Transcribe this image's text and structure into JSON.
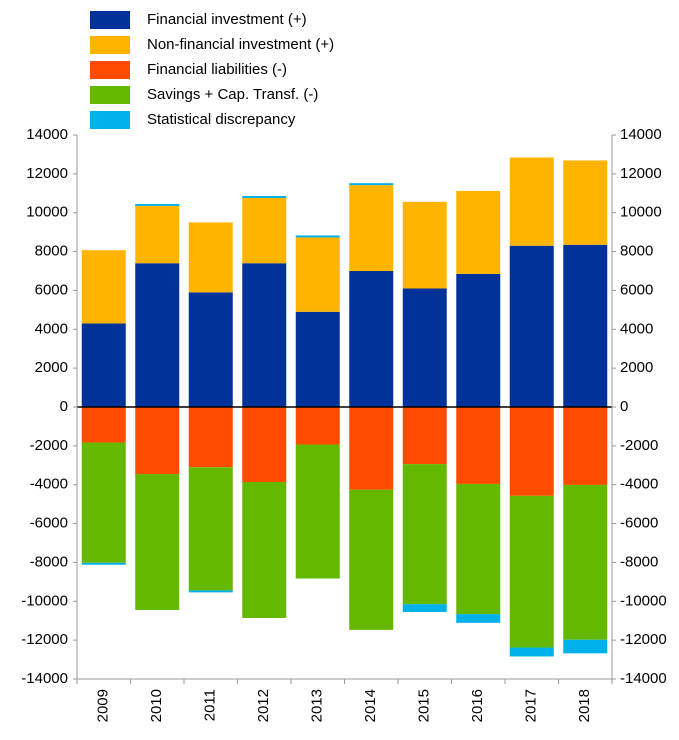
{
  "chart_data": {
    "type": "bar",
    "stacked": true,
    "categories": [
      "2009",
      "2010",
      "2011",
      "2012",
      "2013",
      "2014",
      "2015",
      "2016",
      "2017",
      "2018"
    ],
    "series": [
      {
        "name": "Financial investment (+)",
        "color": "#003299",
        "values": [
          4300,
          7400,
          5900,
          7400,
          4900,
          7000,
          6100,
          6850,
          8300,
          8350
        ]
      },
      {
        "name": "Non-financial investment (+)",
        "color": "#ffb400",
        "values": [
          3770,
          2950,
          3600,
          3360,
          3830,
          4420,
          4460,
          4270,
          4540,
          4340
        ]
      },
      {
        "name": "Financial liabilities (-)",
        "color": "#ff4b00",
        "values": [
          -1830,
          -3450,
          -3100,
          -3860,
          -1930,
          -4260,
          -2940,
          -3960,
          -4570,
          -4010
        ]
      },
      {
        "name": "Savings + Cap. Transf. (-)",
        "color": "#65b800",
        "values": [
          -6190,
          -7000,
          -6340,
          -7000,
          -6900,
          -7210,
          -7210,
          -6700,
          -7810,
          -7970
        ]
      },
      {
        "name": "Statistical discrepancy",
        "color": "#00b1ea",
        "values": [
          -100,
          100,
          -100,
          100,
          100,
          100,
          -400,
          -450,
          -460,
          -700
        ]
      }
    ],
    "ylim": [
      -14000,
      14000
    ],
    "yticks": [
      -14000,
      -12000,
      -10000,
      -8000,
      -6000,
      -4000,
      -2000,
      0,
      2000,
      4000,
      6000,
      8000,
      10000,
      12000,
      14000
    ],
    "y2lim": [
      -14000,
      14000
    ],
    "y2ticks": [
      -14000,
      -12000,
      -10000,
      -8000,
      -6000,
      -4000,
      -2000,
      0,
      2000,
      4000,
      6000,
      8000,
      10000,
      12000,
      14000
    ],
    "legend": "top-left"
  }
}
